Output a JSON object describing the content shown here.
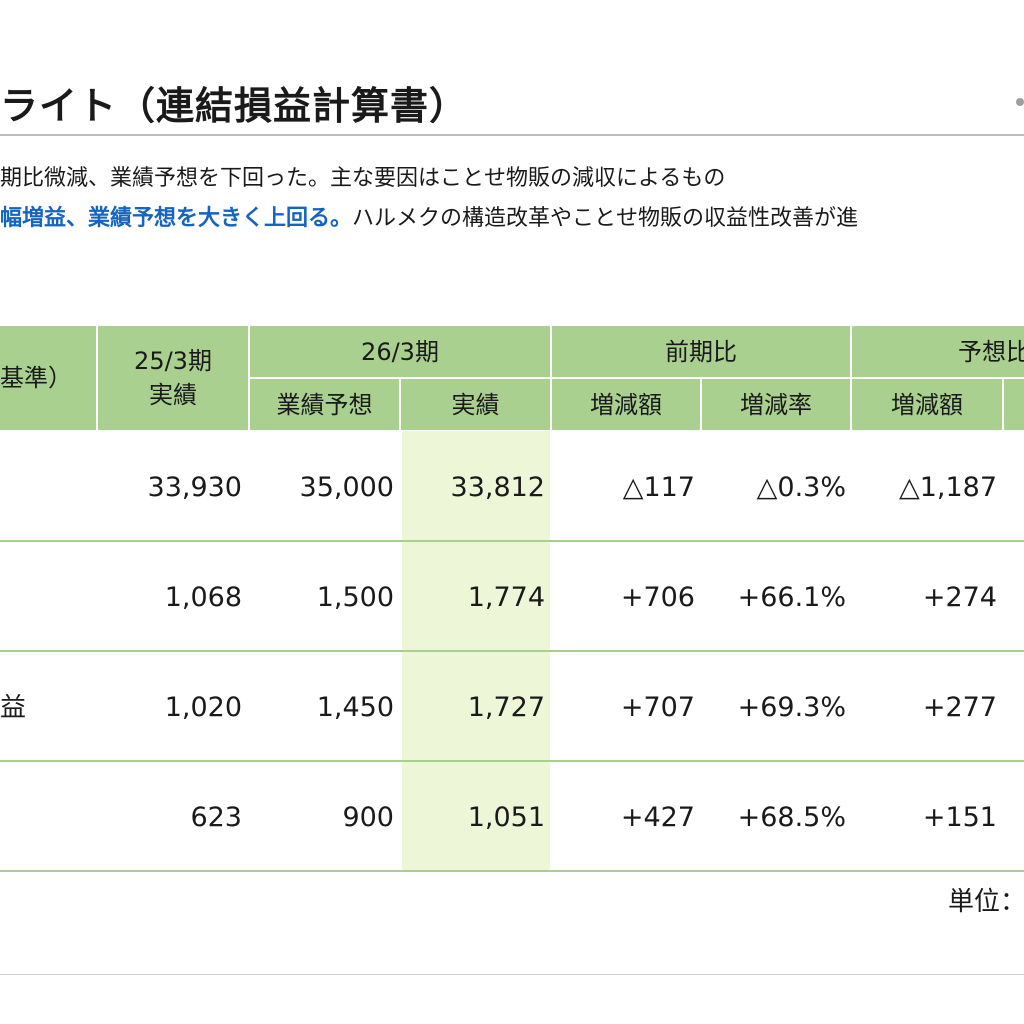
{
  "title": "ライト（連結損益計算書）",
  "summary": {
    "line1": "期比微減、業績予想を下回った。主な要因はことせ物販の減収によるもの",
    "line2_highlight": "幅増益、業績予想を大きく上回る。",
    "line2_rest": "ハルメクの構造改革やことせ物販の収益性改善が進"
  },
  "table": {
    "headers": {
      "item": "基準）",
      "prev_line1": "25/3期",
      "prev_line2": "実績",
      "curr_group": "26/3期",
      "curr_forecast": "業績予想",
      "curr_actual": "実績",
      "yoy_group": "前期比",
      "yoy_diff": "増減額",
      "yoy_rate": "増減率",
      "fcst_group": "予想比",
      "fcst_diff": "増減額"
    },
    "rows": [
      {
        "label": "",
        "prev": "33,930",
        "forecast": "35,000",
        "actual": "33,812",
        "yoy_diff": "△117",
        "yoy_rate": "△0.3%",
        "fcst_diff": "△1,187"
      },
      {
        "label": "",
        "prev": "1,068",
        "forecast": "1,500",
        "actual": "1,774",
        "yoy_diff": "+706",
        "yoy_rate": "+66.1%",
        "fcst_diff": "+274"
      },
      {
        "label": "益",
        "prev": "1,020",
        "forecast": "1,450",
        "actual": "1,727",
        "yoy_diff": "+707",
        "yoy_rate": "+69.3%",
        "fcst_diff": "+277"
      },
      {
        "label": "",
        "prev": "623",
        "forecast": "900",
        "actual": "1,051",
        "yoy_diff": "+427",
        "yoy_rate": "+68.5%",
        "fcst_diff": "+151"
      }
    ],
    "unit": "単位："
  },
  "colors": {
    "header_bg": "#a9d08e",
    "actual_col_bg": "#eef6d8",
    "highlight_text": "#1565c0"
  }
}
